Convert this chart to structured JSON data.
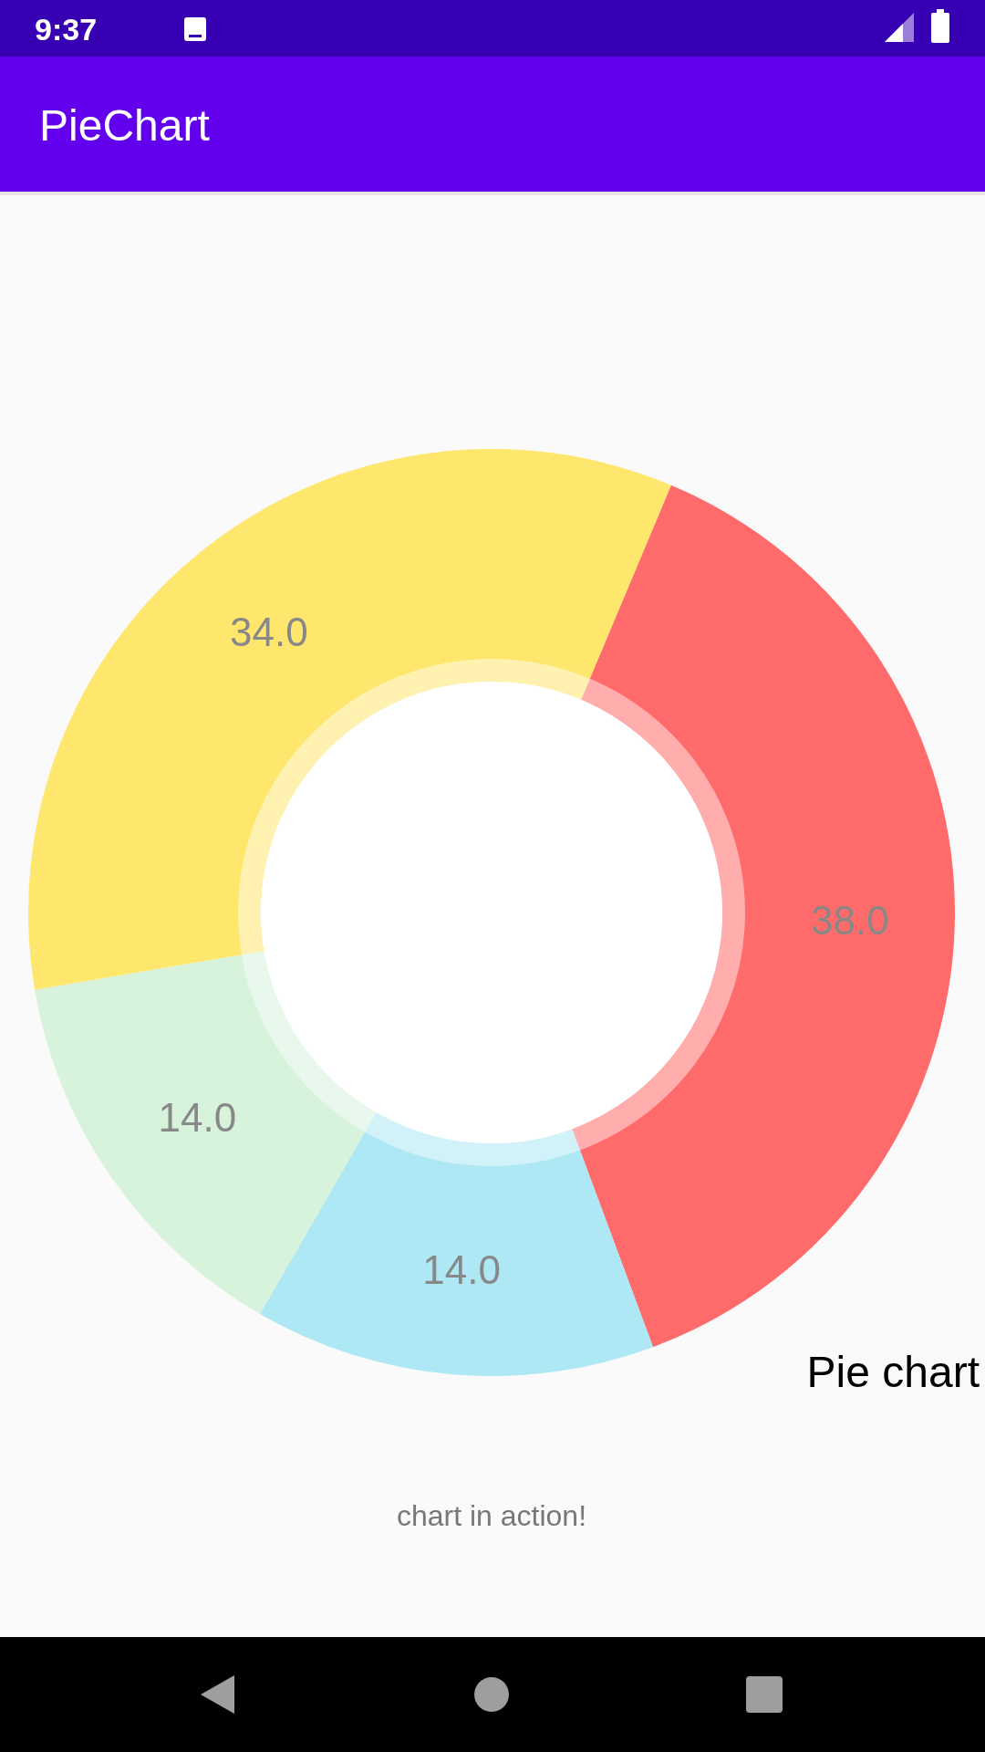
{
  "chart_data": {
    "type": "donut",
    "title": "PieChart",
    "categories": [
      null,
      null,
      null,
      null
    ],
    "values": [
      38,
      14,
      14,
      34
    ],
    "colors": [
      "#ff6b6b",
      "#ade8f4",
      "#d8f3dc",
      "#ffe66d"
    ],
    "value_labels": [
      "38.0",
      "14.0",
      "14.0",
      "34.0"
    ],
    "annotations": [
      "Pie chart",
      "chart in action!",
      "9:37"
    ]
  }
}
